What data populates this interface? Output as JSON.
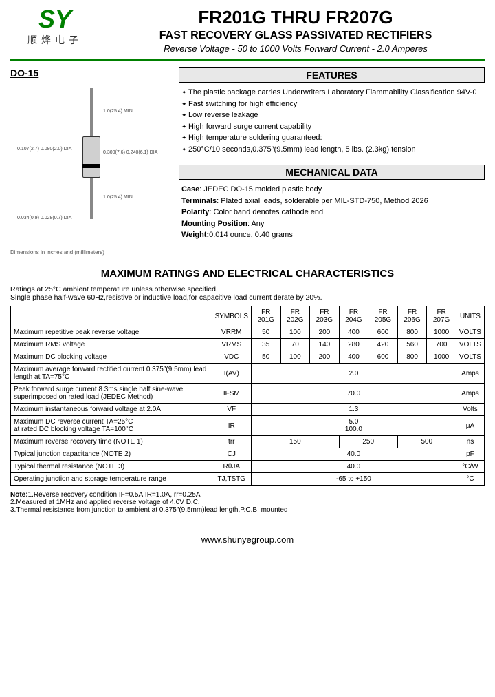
{
  "header": {
    "logo_sy": "SY",
    "logo_cn": "顺烨电子",
    "title": "FR201G THRU FR207G",
    "subtitle": "FAST RECOVERY GLASS PASSIVATED RECTIFIERS",
    "subtitle2": "Reverse Voltage - 50 to 1000 Volts    Forward Current - 2.0 Amperes"
  },
  "package": {
    "name": "DO-15",
    "dim1": "1.0(25.4) MIN",
    "dim2": "0.107(2.7) 0.080(2.0) DIA",
    "dim3": "0.300(7.6) 0.240(6.1) DIA",
    "dim4": "1.0(25.4) MIN",
    "dim5": "0.034(0.9) 0.028(0.7) DIA",
    "note": "Dimensions in inches and (millimeters)"
  },
  "features": {
    "title": "FEATURES",
    "items": [
      "The plastic package carries Underwriters Laboratory Flammability Classification 94V-0",
      "Fast switching for high efficiency",
      "Low reverse leakage",
      "High forward surge current capability",
      "High temperature soldering guaranteed:",
      "250°C/10 seconds,0.375″(9.5mm) lead length, 5 lbs. (2.3kg) tension"
    ]
  },
  "mechanical": {
    "title": "MECHANICAL DATA",
    "case_lbl": "Case",
    "case": ": JEDEC DO-15 molded plastic body",
    "term_lbl": "Terminals",
    "term": ": Plated axial leads, solderable per MIL-STD-750, Method 2026",
    "pol_lbl": "Polarity",
    "pol": ": Color band denotes cathode end",
    "mount_lbl": "Mounting Position",
    "mount": ": Any",
    "wt_lbl": "Weight:",
    "wt": "0.014 ounce, 0.40 grams"
  },
  "ratings": {
    "title": "MAXIMUM RATINGS AND ELECTRICAL CHARACTERISTICS",
    "note": "Ratings at 25°C ambient temperature unless otherwise specified.\nSingle phase half-wave 60Hz,resistive or inductive load,for capacitive load current derate by 20%.",
    "headers": [
      "SYMBOLS",
      "FR 201G",
      "FR 202G",
      "FR 203G",
      "FR 204G",
      "FR 205G",
      "FR 206G",
      "FR 207G",
      "UNITS"
    ],
    "rows": [
      {
        "lbl": "Maximum repetitive peak reverse voltage",
        "sym": "VRRM",
        "v": [
          "50",
          "100",
          "200",
          "400",
          "600",
          "800",
          "1000"
        ],
        "u": "VOLTS"
      },
      {
        "lbl": "Maximum RMS voltage",
        "sym": "VRMS",
        "v": [
          "35",
          "70",
          "140",
          "280",
          "420",
          "560",
          "700"
        ],
        "u": "VOLTS"
      },
      {
        "lbl": "Maximum DC blocking voltage",
        "sym": "VDC",
        "v": [
          "50",
          "100",
          "200",
          "400",
          "600",
          "800",
          "1000"
        ],
        "u": "VOLTS"
      },
      {
        "lbl": "Maximum average forward rectified current 0.375″(9.5mm) lead length at TA=75°C",
        "sym": "I(AV)",
        "span": "2.0",
        "u": "Amps"
      },
      {
        "lbl": "Peak forward surge current 8.3ms single half sine-wave superimposed on rated load (JEDEC Method)",
        "sym": "IFSM",
        "span": "70.0",
        "u": "Amps"
      },
      {
        "lbl": "Maximum instantaneous forward voltage at 2.0A",
        "sym": "VF",
        "span": "1.3",
        "u": "Volts"
      },
      {
        "lbl": "Maximum DC reverse current    TA=25°C\nat rated DC blocking voltage    TA=100°C",
        "sym": "IR",
        "span": "5.0\n100.0",
        "u": "μA"
      },
      {
        "lbl": "Maximum reverse recovery time       (NOTE 1)",
        "sym": "trr",
        "grp": [
          {
            "c": 3,
            "v": "150"
          },
          {
            "c": 2,
            "v": "250"
          },
          {
            "c": 2,
            "v": "500"
          }
        ],
        "u": "ns"
      },
      {
        "lbl": "Typical junction capacitance (NOTE 2)",
        "sym": "CJ",
        "span": "40.0",
        "u": "pF"
      },
      {
        "lbl": "Typical thermal resistance (NOTE 3)",
        "sym": "RθJA",
        "span": "40.0",
        "u": "°C/W"
      },
      {
        "lbl": "Operating junction and storage temperature range",
        "sym": "TJ,TSTG",
        "span": "-65 to +150",
        "u": "°C"
      }
    ],
    "footnotes": "Note:1.Reverse recovery condition IF=0.5A,IR=1.0A,Irr=0.25A\n        2.Measured at 1MHz and applied reverse voltage of 4.0V D.C.\n        3.Thermal resistance from junction to ambient at 0.375″(9.5mm)lead length,P.C.B. mounted"
  },
  "footer": "www.shunyegroup.com"
}
